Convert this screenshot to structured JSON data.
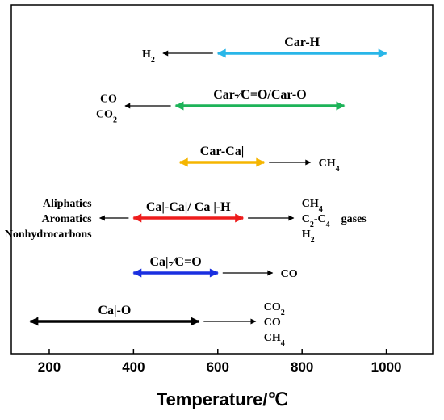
{
  "chart_data": {
    "type": "range",
    "xlabel": "Temperature/℃",
    "xlim": [
      110,
      1110
    ],
    "x_ticks": [
      200,
      400,
      600,
      800,
      1000
    ],
    "grid": false,
    "bands": [
      {
        "name": "Car-H",
        "range": [
          600,
          1000
        ],
        "color": "#29b6e8",
        "product_side": "left",
        "product_arrow_to": 470,
        "products": [
          {
            "main": "H",
            "sub": "2"
          }
        ]
      },
      {
        "name": "Car-⁄C=O/Car-O",
        "range": [
          500,
          900
        ],
        "color": "#1db358",
        "product_side": "left",
        "product_arrow_to": 380,
        "products": [
          {
            "main": "CO",
            "sub": ""
          },
          {
            "main": "CO",
            "sub": "2"
          }
        ]
      },
      {
        "name": "Car-Ca|",
        "range": [
          510,
          710
        ],
        "color": "#f5b500",
        "product_side": "right",
        "product_arrow_to": 820,
        "products": [
          {
            "main": "CH",
            "sub": "4"
          }
        ]
      },
      {
        "name": "Ca|-Ca|/ Ca |-H",
        "range": [
          400,
          660
        ],
        "color": "#ee1c1c",
        "product_side": "both",
        "product_arrow_to": 320,
        "right_arrow_to": 780,
        "products": [
          {
            "main": "Aliphatics",
            "sub": ""
          },
          {
            "main": "Aromatics",
            "sub": ""
          },
          {
            "main": "Nonhydrocarbons",
            "sub": ""
          }
        ],
        "right_products": [
          {
            "main": "CH",
            "sub": "4"
          },
          {
            "main": "C",
            "sub": "2",
            "mid": "-C",
            "sub2": "4",
            "suffix": "gases"
          },
          {
            "main": "H",
            "sub": "2"
          }
        ]
      },
      {
        "name": "Ca|-⁄C=O",
        "range": [
          400,
          600
        ],
        "color": "#1a2fe0",
        "product_side": "right",
        "product_arrow_to": 730,
        "products": [
          {
            "main": "CO",
            "sub": ""
          }
        ]
      },
      {
        "name": "Ca|-O",
        "range": [
          155,
          555
        ],
        "color": "#000000",
        "product_side": "right",
        "product_arrow_to": 690,
        "products": [
          {
            "main": "CO",
            "sub": "2"
          },
          {
            "main": "CO",
            "sub": ""
          },
          {
            "main": "CH",
            "sub": "4"
          }
        ]
      }
    ]
  }
}
